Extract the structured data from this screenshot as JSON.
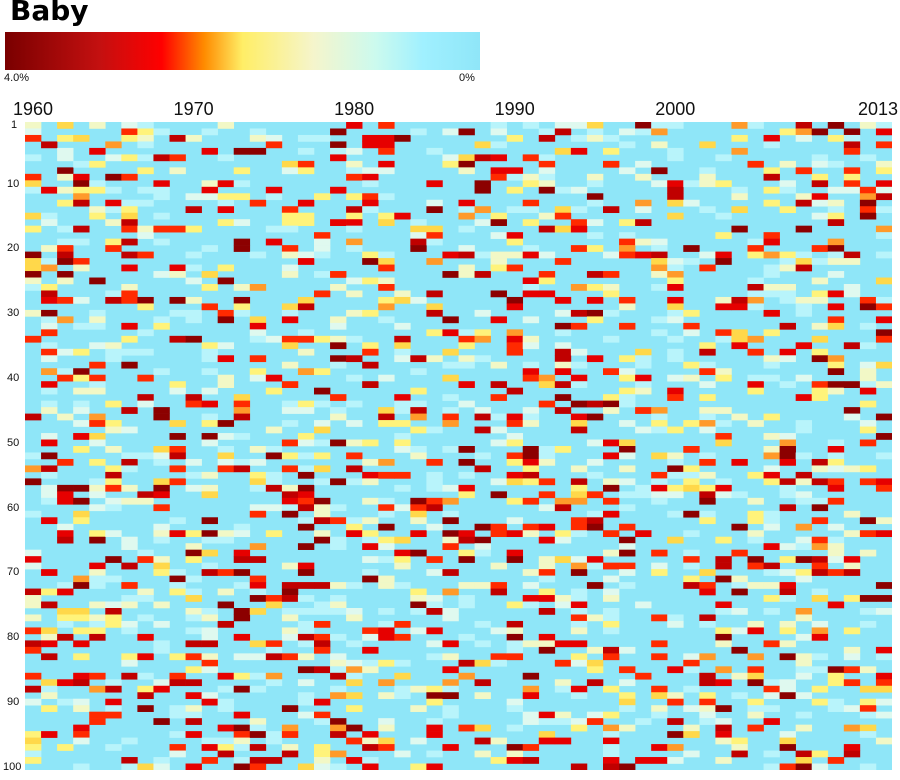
{
  "title": "Baby",
  "legend": {
    "min_label": "4.0%",
    "max_label": "0%",
    "colors": [
      "#7a0000",
      "#c41010",
      "#ff0000",
      "#ff8c00",
      "#ffee66",
      "#f5f5cc",
      "#ccfaee",
      "#a0f0ff",
      "#8fe6f8"
    ]
  },
  "chart_data": {
    "type": "heatmap",
    "title": "Baby",
    "x_range": [
      1960,
      2013
    ],
    "y_range": [
      1,
      100
    ],
    "x_tick_labels": [
      "1960",
      "1970",
      "1980",
      "1990",
      "2000",
      "2013"
    ],
    "y_tick_labels": [
      "1",
      "10",
      "20",
      "30",
      "40",
      "50",
      "60",
      "70",
      "80",
      "90",
      "100"
    ],
    "color_scale": {
      "min": "0%",
      "max": "4.0%",
      "note_colors": "dark red = 4.0%, light cyan = 0%"
    },
    "cells_description_omitted": true
  }
}
